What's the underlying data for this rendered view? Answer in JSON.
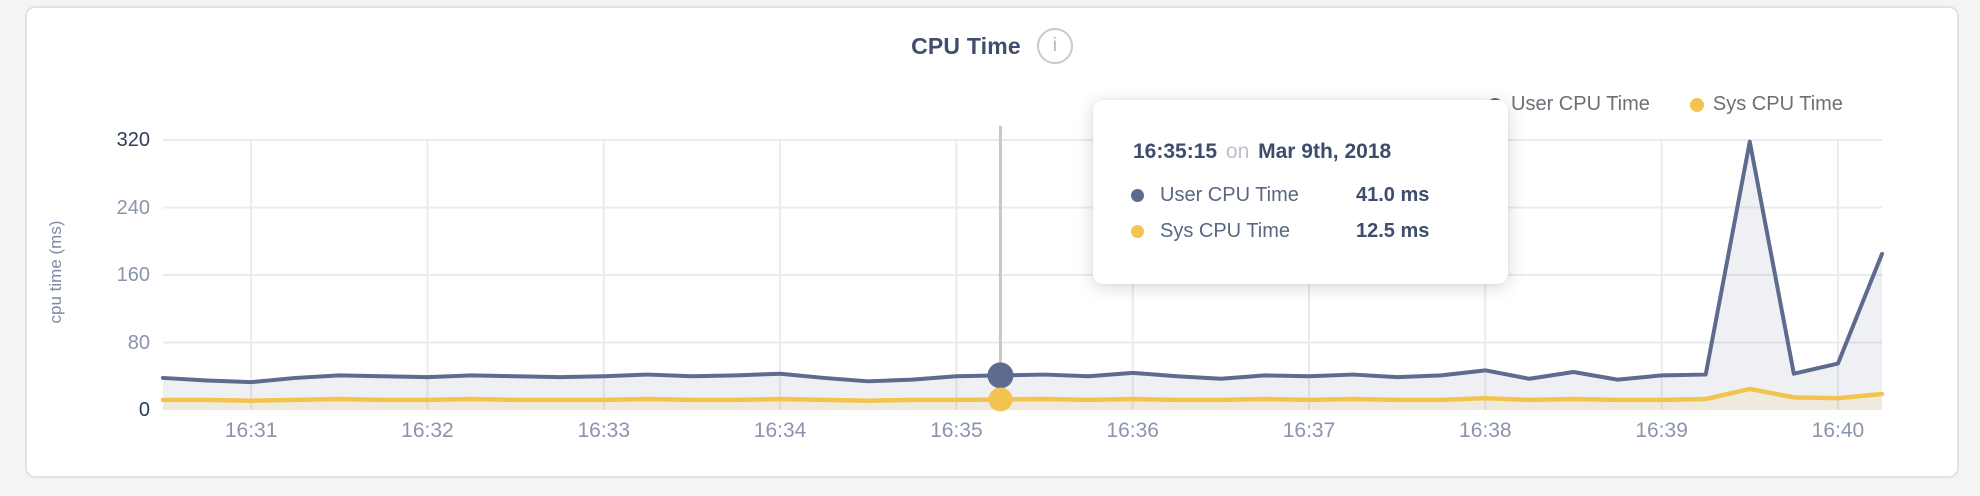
{
  "panel": {
    "title": "CPU Time",
    "info_glyph": "i"
  },
  "legend": {
    "items": [
      {
        "label": "User CPU Time",
        "color": "#5d6b8e"
      },
      {
        "label": "Sys CPU Time",
        "color": "#f2c44e"
      }
    ]
  },
  "tooltip": {
    "time": "16:35:15",
    "connector": "on",
    "date": "Mar 9th, 2018",
    "rows": [
      {
        "label": "User CPU Time",
        "value": "41.0 ms",
        "color": "#5d6b8e"
      },
      {
        "label": "Sys CPU Time",
        "value": "12.5 ms",
        "color": "#f2c44e"
      }
    ]
  },
  "y_axis": {
    "label": "cpu time (ms)",
    "ticks": [
      0,
      80,
      160,
      240,
      320
    ]
  },
  "x_axis": {
    "tick_labels": [
      "16:31",
      "16:32",
      "16:33",
      "16:34",
      "16:35",
      "16:36",
      "16:37",
      "16:38",
      "16:39",
      "16:40"
    ]
  },
  "chart_data": {
    "type": "area",
    "title": "CPU Time",
    "xlabel": "",
    "ylabel": "cpu time (ms)",
    "ylim": [
      0,
      320
    ],
    "y_ticks": [
      0,
      80,
      160,
      240,
      320
    ],
    "grid": true,
    "legend_position": "top-right",
    "x": [
      "16:30:30",
      "16:30:45",
      "16:31:00",
      "16:31:15",
      "16:31:30",
      "16:31:45",
      "16:32:00",
      "16:32:15",
      "16:32:30",
      "16:32:45",
      "16:33:00",
      "16:33:15",
      "16:33:30",
      "16:33:45",
      "16:34:00",
      "16:34:15",
      "16:34:30",
      "16:34:45",
      "16:35:00",
      "16:35:15",
      "16:35:30",
      "16:35:45",
      "16:36:00",
      "16:36:15",
      "16:36:30",
      "16:36:45",
      "16:37:00",
      "16:37:15",
      "16:37:30",
      "16:37:45",
      "16:38:00",
      "16:38:15",
      "16:38:30",
      "16:38:45",
      "16:39:00",
      "16:39:15",
      "16:39:30",
      "16:39:45",
      "16:40:00",
      "16:40:15"
    ],
    "x_tick_labels": [
      "16:31",
      "16:32",
      "16:33",
      "16:34",
      "16:35",
      "16:36",
      "16:37",
      "16:38",
      "16:39",
      "16:40"
    ],
    "series": [
      {
        "name": "User CPU Time",
        "color": "#5d6b8e",
        "fill": "rgba(93,107,142,0.10)",
        "values": [
          38,
          35,
          33,
          38,
          41,
          40,
          39,
          41,
          40,
          39,
          40,
          42,
          40,
          41,
          43,
          38,
          34,
          36,
          40,
          41,
          42,
          40,
          44,
          40,
          37,
          41,
          40,
          42,
          39,
          41,
          47,
          37,
          45,
          36,
          41,
          42,
          318,
          43,
          55,
          185
        ]
      },
      {
        "name": "Sys CPU Time",
        "color": "#f2c44e",
        "fill": "rgba(242,196,78,0.13)",
        "values": [
          12,
          12,
          11,
          12,
          13,
          12,
          12,
          13,
          12,
          12,
          12,
          13,
          12,
          12,
          13,
          12,
          11,
          12,
          12,
          12.5,
          13,
          12,
          13,
          12,
          12,
          13,
          12,
          13,
          12,
          12,
          14,
          12,
          13,
          12,
          12,
          13,
          25,
          15,
          14,
          19
        ]
      }
    ],
    "hover": {
      "index": 19,
      "time": "16:35:15",
      "date": "Mar 9th, 2018",
      "user_value_ms": 41.0,
      "sys_value_ms": 12.5
    }
  }
}
